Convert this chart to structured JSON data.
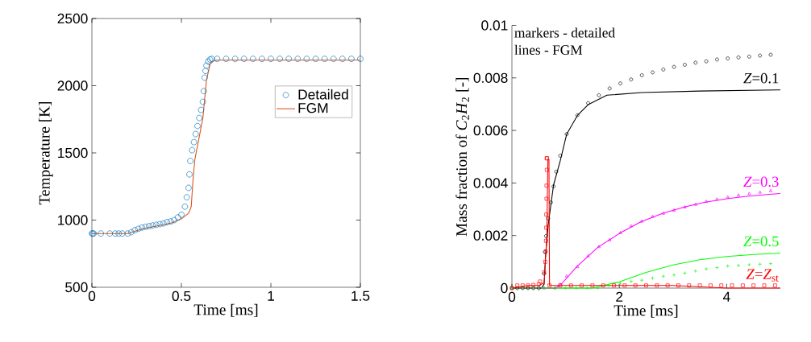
{
  "chart_data": [
    {
      "type": "line",
      "xlabel": "Time [ms]",
      "ylabel": "Temperature [K]",
      "xlim": [
        0,
        1.5
      ],
      "ylim": [
        500,
        2500
      ],
      "xticks": [
        0,
        0.5,
        1,
        1.5
      ],
      "yticks": [
        500,
        1000,
        1500,
        2000,
        2500
      ],
      "grid": false,
      "legend": "right",
      "series": [
        {
          "name": "Detailed",
          "type": "scatter",
          "marker": "circle",
          "color": "#0072bd",
          "x": [
            0,
            0.005,
            0.01,
            0.05,
            0.1,
            0.13,
            0.15,
            0.17,
            0.2,
            0.22,
            0.24,
            0.26,
            0.28,
            0.3,
            0.32,
            0.34,
            0.36,
            0.38,
            0.4,
            0.42,
            0.44,
            0.46,
            0.48,
            0.5,
            0.52,
            0.53,
            0.54,
            0.545,
            0.55,
            0.56,
            0.57,
            0.58,
            0.59,
            0.6,
            0.61,
            0.62,
            0.625,
            0.63,
            0.635,
            0.64,
            0.65,
            0.66,
            0.67,
            0.7,
            0.75,
            0.8,
            0.85,
            0.9,
            0.95,
            1.0,
            1.05,
            1.1,
            1.15,
            1.2,
            1.25,
            1.3,
            1.35,
            1.4,
            1.45,
            1.5
          ],
          "values": [
            900,
            900,
            900,
            900,
            900,
            900,
            900,
            900,
            900,
            910,
            925,
            935,
            945,
            950,
            955,
            960,
            965,
            970,
            975,
            985,
            990,
            1000,
            1020,
            1040,
            1100,
            1170,
            1240,
            1340,
            1440,
            1520,
            1580,
            1640,
            1700,
            1760,
            1820,
            1880,
            1960,
            2060,
            2110,
            2150,
            2180,
            2195,
            2200,
            2200,
            2200,
            2200,
            2200,
            2200,
            2200,
            2200,
            2200,
            2200,
            2200,
            2200,
            2200,
            2200,
            2200,
            2200,
            2200,
            2200
          ]
        },
        {
          "name": "FGM",
          "marker": "none",
          "line_style": "solid",
          "color": "#d95319",
          "x": [
            0,
            0.2,
            0.25,
            0.3,
            0.4,
            0.45,
            0.5,
            0.54,
            0.555,
            0.565,
            0.575,
            0.6,
            0.62,
            0.64,
            0.66,
            0.68,
            0.7,
            1.5
          ],
          "values": [
            900,
            900,
            920,
            940,
            965,
            980,
            1010,
            1050,
            1100,
            1300,
            1450,
            1620,
            1760,
            2040,
            2160,
            2185,
            2190,
            2190
          ]
        }
      ]
    },
    {
      "type": "line",
      "xlabel": "Time [ms]",
      "ylabel": "Mass fraction of *C*$_{2}$*H*$_{2}$ [-]",
      "xlim": [
        0,
        5
      ],
      "ylim": [
        0,
        0.01
      ],
      "xticks": [
        0,
        2,
        4
      ],
      "yticks": [
        0,
        0.002,
        0.004,
        0.006,
        0.008,
        0.01
      ],
      "grid": false,
      "legend": false,
      "annotations": [
        "markers - detailed",
        "lines - FGM"
      ],
      "series": [
        {
          "type": "scatter",
          "marker": "circle",
          "color": "#000000",
          "x": [
            0,
            0.1,
            0.2,
            0.3,
            0.4,
            0.5,
            0.6,
            0.615,
            0.635,
            0.675,
            0.725,
            0.775,
            0.825,
            0.9,
            1.02,
            1.22,
            1.42,
            1.62,
            1.82,
            2.02,
            2.22,
            2.42,
            2.62,
            2.82,
            3.02,
            3.22,
            3.42,
            3.62,
            3.82,
            4.02,
            4.22,
            4.42,
            4.62,
            4.82
          ],
          "values": [
            0,
            0,
            0,
            0,
            0,
            0,
            0.00055,
            0.00137,
            0.00198,
            0.00265,
            0.00326,
            0.00387,
            0.00443,
            0.00504,
            0.00586,
            0.00658,
            0.00704,
            0.00734,
            0.0076,
            0.00779,
            0.00794,
            0.0081,
            0.00821,
            0.00832,
            0.00842,
            0.0085,
            0.00858,
            0.00863,
            0.0087,
            0.00874,
            0.00878,
            0.00881,
            0.00885,
            0.00888
          ]
        },
        {
          "name": "*Z*=0.1",
          "marker": "none",
          "line_style": "solid",
          "color": "#000000",
          "x": [
            0,
            0.55,
            0.6,
            0.625,
            0.675,
            0.775,
            0.9,
            1.02,
            1.22,
            1.42,
            1.77,
            2.42,
            3.5,
            4.95,
            5.0
          ],
          "values": [
            0,
            0,
            0.00015,
            0.00116,
            0.00239,
            0.00392,
            0.00484,
            0.00586,
            0.00657,
            0.00698,
            0.00734,
            0.00744,
            0.0075,
            0.00754,
            0.00754
          ]
        },
        {
          "type": "scatter",
          "marker": "triangle",
          "color": "#ff00ff",
          "x": [
            0,
            0.2,
            0.4,
            0.6,
            0.8,
            0.9,
            1.02,
            1.22,
            1.42,
            1.62,
            1.82,
            2.02,
            2.22,
            2.42,
            2.62,
            2.82,
            3.02,
            3.22,
            3.42,
            3.62,
            3.82,
            4.02,
            4.22,
            4.42,
            4.62,
            4.82
          ],
          "values": [
            0,
            0,
            0,
            0,
            0,
            0.00014,
            0.00045,
            0.00081,
            0.00122,
            0.00157,
            0.00183,
            0.0021,
            0.00236,
            0.00254,
            0.00272,
            0.00284,
            0.00296,
            0.00308,
            0.00318,
            0.00329,
            0.00338,
            0.00346,
            0.00353,
            0.00359,
            0.00364,
            0.0037
          ]
        },
        {
          "name": "*Z*=0.3",
          "marker": "none",
          "line_style": "solid",
          "color": "#ff00ff",
          "x": [
            0,
            0.8,
            0.9,
            1.2,
            1.6,
            2.0,
            2.4,
            2.8,
            3.2,
            3.6,
            4.0,
            4.4,
            4.8,
            5.0
          ],
          "values": [
            0,
            0,
            0.0001,
            0.0008,
            0.00155,
            0.00208,
            0.00252,
            0.00284,
            0.00308,
            0.00327,
            0.0034,
            0.0035,
            0.00357,
            0.0036
          ]
        },
        {
          "type": "scatter",
          "marker": "cross",
          "color": "#00ff00",
          "x": [
            0,
            0.2,
            0.4,
            0.6,
            0.8,
            1.0,
            1.2,
            1.4,
            1.6,
            1.8,
            2.02,
            2.22,
            2.42,
            2.62,
            2.82,
            3.02,
            3.22,
            3.42,
            3.62,
            3.82,
            4.02,
            4.22,
            4.42,
            4.62,
            4.82
          ],
          "values": [
            0,
            0,
            0,
            0,
            0,
            0,
            0,
            0,
            0,
            0.0001,
            0.00018,
            0.00025,
            0.0003,
            0.00038,
            0.00045,
            0.0005,
            0.00057,
            0.00065,
            0.00073,
            0.00078,
            0.00084,
            0.00086,
            0.00089,
            0.00091,
            0.00093
          ]
        },
        {
          "name": "*Z*=0.5",
          "marker": "none",
          "line_style": "solid",
          "color": "#00ff00",
          "x": [
            0,
            1.5,
            2.0,
            2.5,
            3.0,
            3.5,
            4.0,
            4.5,
            5.0
          ],
          "values": [
            0,
            0,
            0.00024,
            0.0006,
            0.00088,
            0.00108,
            0.0012,
            0.00128,
            0.00133
          ]
        },
        {
          "type": "scatter",
          "marker": "square",
          "color": "#ff0000",
          "x": [
            0,
            0.1,
            0.2,
            0.3,
            0.4,
            0.5,
            0.525,
            0.6,
            0.62,
            0.63,
            0.635,
            0.64,
            0.64,
            0.645,
            0.645,
            0.65,
            0.65,
            0.65,
            0.7,
            0.9,
            1.1,
            1.3,
            1.5,
            1.7,
            1.9,
            2.1,
            2.3,
            2.5,
            2.7,
            2.9,
            3.1,
            3.3,
            3.5,
            3.7,
            3.9,
            4.1,
            4.3,
            4.5,
            4.7,
            4.9
          ],
          "values": [
            0,
            0.0001,
            0.0001,
            0.0001,
            0.00012,
            0.00015,
            0.00025,
            0.0006,
            0.001,
            0.0014,
            0.0018,
            0.0023,
            0.0028,
            0.0034,
            0.0039,
            0.0045,
            0.00494,
            0.00494,
            0.0001,
            0.0001,
            0.0001,
            0.0001,
            0.0001,
            0.0001,
            0.0001,
            0.0001,
            0.0001,
            0.0001,
            0.0001,
            0.0001,
            0.0001,
            0.0001,
            0.0001,
            0.0001,
            0.0001,
            0.0001,
            0.0001,
            0.0001,
            0.0001,
            0.0001
          ]
        },
        {
          "name": "*Z*=*Z*$_{st}$",
          "marker": "none",
          "line_style": "solid",
          "color": "#ff0000",
          "x": [
            0,
            0.3,
            0.5,
            0.6,
            0.65,
            0.67,
            0.69,
            0.7,
            1.0,
            2.0,
            3.0,
            4.0,
            5.0
          ],
          "values": [
            0,
            0.0001,
            0.0001,
            0.0002,
            0.002,
            0.0049,
            0.0049,
            0.0001,
            0.0001,
            0.0001,
            0.0001,
            0,
            0
          ]
        }
      ]
    }
  ]
}
